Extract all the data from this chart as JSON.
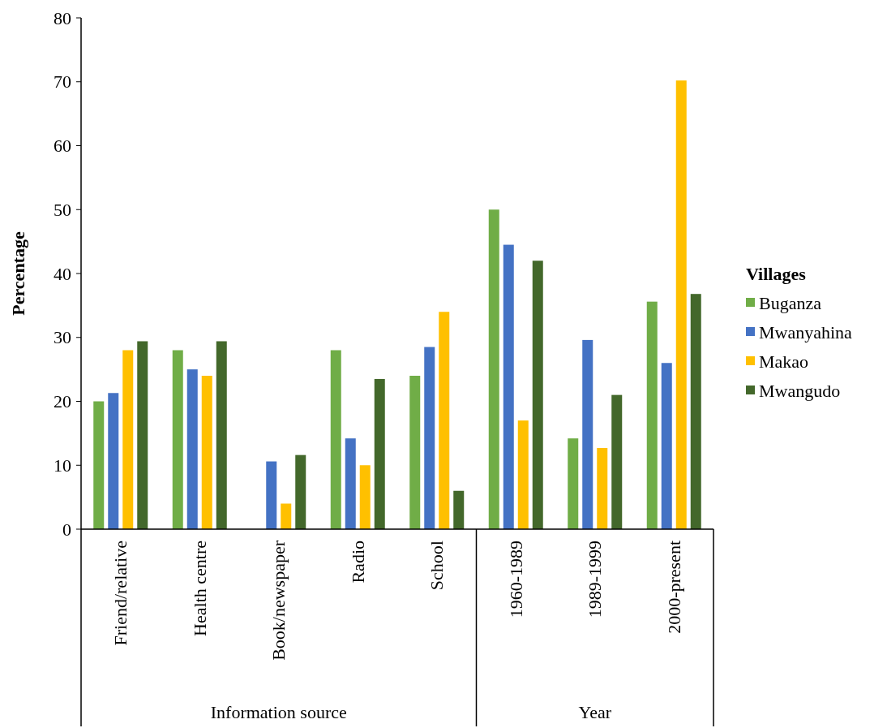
{
  "chart_data": {
    "type": "bar",
    "ylabel": "Percentage",
    "legend_title": "Villages",
    "legend": "right",
    "grid": false,
    "categories": [
      "Friend/relative",
      "Health centre",
      "Book/newspaper",
      "Radio",
      "School",
      "1960-1989",
      "1989-1999",
      "2000-present"
    ],
    "ylim": [
      0,
      80
    ],
    "yticks": [
      0,
      10,
      20,
      30,
      40,
      50,
      60,
      70,
      80
    ],
    "annotations": [
      "Information source",
      "Year"
    ],
    "series": [
      {
        "name": "Buganza",
        "color": "#70ad47",
        "values": [
          20,
          28,
          0,
          28,
          24,
          50,
          14.2,
          35.6
        ]
      },
      {
        "name": "Mwanyahina",
        "color": "#4472c4",
        "values": [
          21.3,
          25,
          10.6,
          14.2,
          28.5,
          44.5,
          29.6,
          26
        ]
      },
      {
        "name": "Makao",
        "color": "#ffc000",
        "values": [
          28,
          24,
          4,
          10,
          34,
          17,
          12.7,
          70.2
        ]
      },
      {
        "name": "Mwangudo",
        "color": "#43682b",
        "values": [
          29.4,
          29.4,
          11.6,
          23.5,
          6,
          42,
          21,
          36.8
        ]
      }
    ]
  }
}
